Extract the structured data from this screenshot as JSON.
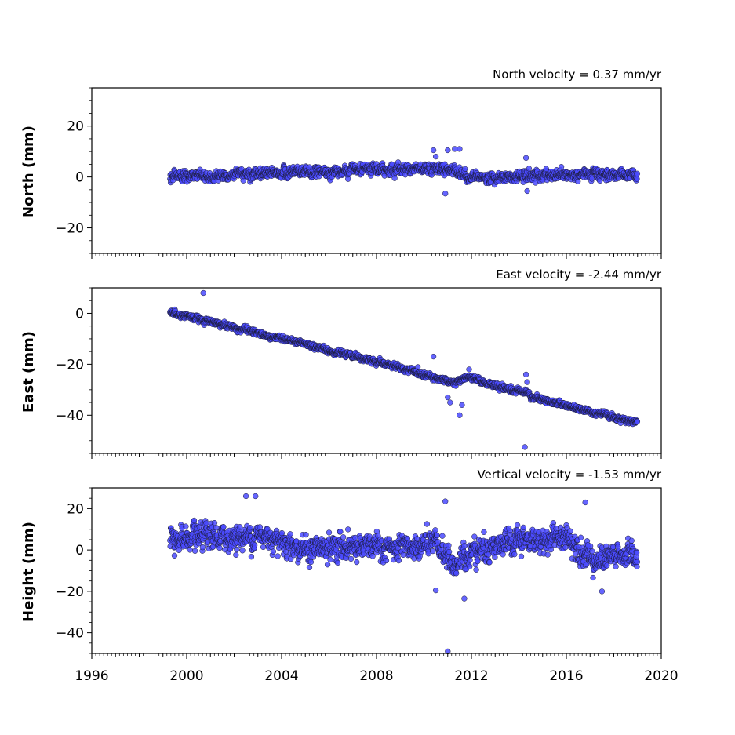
{
  "chart_data": [
    {
      "type": "scatter",
      "title": "North velocity = 0.37 mm/yr",
      "ylabel": "North (mm)",
      "xlim": [
        1996,
        2020
      ],
      "ylim": [
        -30,
        35
      ],
      "yticks": [
        -20,
        0,
        20
      ],
      "yticklabels": [
        "−20",
        "0",
        "20"
      ],
      "velocity_mm_yr": 0.37,
      "time_range": [
        1999.3,
        2019.0
      ],
      "marker_color": "#4a4aff",
      "series": [
        {
          "trend": [
            [
              1999.3,
              0.0
            ],
            [
              2004.0,
              1.5
            ],
            [
              2008.0,
              2.8
            ],
            [
              2010.0,
              3.6
            ],
            [
              2010.9,
              3.2
            ],
            [
              2011.4,
              2.5
            ],
            [
              2011.8,
              0.0
            ],
            [
              2013.0,
              -0.3
            ],
            [
              2016.0,
              0.8
            ],
            [
              2019.0,
              1.2
            ]
          ],
          "scatter_sd": 1.8,
          "outliers": [
            [
              2010.4,
              10.5
            ],
            [
              2010.5,
              8.0
            ],
            [
              2010.9,
              -6.5
            ],
            [
              2011.0,
              10.5
            ],
            [
              2011.3,
              11.0
            ],
            [
              2011.5,
              11.0
            ],
            [
              2014.3,
              7.5
            ],
            [
              2014.35,
              -5.5
            ]
          ]
        }
      ]
    },
    {
      "type": "scatter",
      "title": "East velocity = -2.44 mm/yr",
      "ylabel": "East (mm)",
      "xlim": [
        1996,
        2020
      ],
      "ylim": [
        -55,
        10
      ],
      "yticks": [
        -40,
        -20,
        0
      ],
      "yticklabels": [
        "−40",
        "−20",
        "0"
      ],
      "velocity_mm_yr": -2.44,
      "time_range": [
        1999.3,
        2019.0
      ],
      "marker_color": "#4a4aff",
      "series": [
        {
          "trend": [
            [
              1999.3,
              0.5
            ],
            [
              2004.0,
              -10.0
            ],
            [
              2008.0,
              -19.0
            ],
            [
              2010.0,
              -24.0
            ],
            [
              2011.3,
              -27.5
            ],
            [
              2011.8,
              -25.0
            ],
            [
              2013.5,
              -30.0
            ],
            [
              2014.3,
              -30.5
            ],
            [
              2014.6,
              -33.0
            ],
            [
              2019.0,
              -43.0
            ]
          ],
          "scatter_sd": 1.0,
          "outliers": [
            [
              2000.7,
              8.0
            ],
            [
              2010.4,
              -17.0
            ],
            [
              2011.0,
              -33.0
            ],
            [
              2011.1,
              -35.0
            ],
            [
              2011.5,
              -40.0
            ],
            [
              2011.6,
              -36.0
            ],
            [
              2011.9,
              -22.0
            ],
            [
              2014.25,
              -52.5
            ],
            [
              2014.3,
              -24.0
            ],
            [
              2014.35,
              -27.0
            ]
          ]
        }
      ]
    },
    {
      "type": "scatter",
      "title": "Vertical velocity = -1.53 mm/yr",
      "ylabel": "Height (mm)",
      "xlim": [
        1996,
        2020
      ],
      "ylim": [
        -50,
        30
      ],
      "yticks": [
        -40,
        -20,
        0,
        20
      ],
      "yticklabels": [
        "−40",
        "−20",
        "0",
        "20"
      ],
      "xticks": [
        1996,
        2000,
        2004,
        2008,
        2012,
        2016,
        2020
      ],
      "xticklabels": [
        "1996",
        "2000",
        "2004",
        "2008",
        "2012",
        "2016",
        "2020"
      ],
      "velocity_mm_yr": -1.53,
      "time_range": [
        1999.3,
        2019.0
      ],
      "marker_color": "#4a4aff",
      "series": [
        {
          "trend": [
            [
              1999.3,
              5.0
            ],
            [
              2002.0,
              6.0
            ],
            [
              2003.5,
              7.0
            ],
            [
              2005.0,
              0.0
            ],
            [
              2007.0,
              2.0
            ],
            [
              2009.0,
              0.0
            ],
            [
              2010.5,
              3.0
            ],
            [
              2011.3,
              -8.0
            ],
            [
              2012.0,
              0.0
            ],
            [
              2014.0,
              4.0
            ],
            [
              2016.0,
              6.0
            ],
            [
              2017.3,
              -6.0
            ],
            [
              2018.5,
              -2.0
            ],
            [
              2019.0,
              -3.0
            ]
          ],
          "scatter_sd": 5.5,
          "outliers": [
            [
              2002.5,
              26.0
            ],
            [
              2002.9,
              26.0
            ],
            [
              2010.5,
              -19.5
            ],
            [
              2010.9,
              23.5
            ],
            [
              2011.0,
              -49.0
            ],
            [
              2011.7,
              -23.5
            ],
            [
              2016.8,
              23.0
            ],
            [
              2017.5,
              -20.0
            ]
          ]
        }
      ]
    }
  ]
}
